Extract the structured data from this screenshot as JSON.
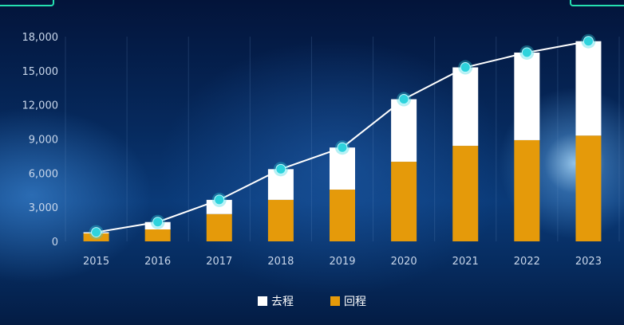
{
  "chart_data": {
    "type": "bar",
    "stacked": true,
    "categories": [
      "2015",
      "2016",
      "2017",
      "2018",
      "2019",
      "2020",
      "2021",
      "2022",
      "2023"
    ],
    "series": [
      {
        "name": "去程",
        "color": "#ffffff",
        "values": [
          100,
          650,
          1250,
          2700,
          3700,
          5500,
          6900,
          7700,
          8300
        ]
      },
      {
        "name": "回程",
        "color": "#e59a0a",
        "values": [
          700,
          1050,
          2400,
          3650,
          4550,
          7000,
          8400,
          8900,
          9300
        ]
      }
    ],
    "line": {
      "color": "#ffffff",
      "marker_color": "#2ed3dc",
      "values": [
        800,
        1700,
        3650,
        6350,
        8250,
        12500,
        15300,
        16600,
        17600
      ]
    },
    "ylim": [
      0,
      18000
    ],
    "yticks": [
      "0",
      "3,000",
      "6,000",
      "9,000",
      "12,000",
      "15,000",
      "18,000"
    ],
    "grid": {
      "horizontal": false,
      "vertical": true
    },
    "legend_position": "bottom-center"
  },
  "colors": {
    "accent": "#25e0b0"
  }
}
